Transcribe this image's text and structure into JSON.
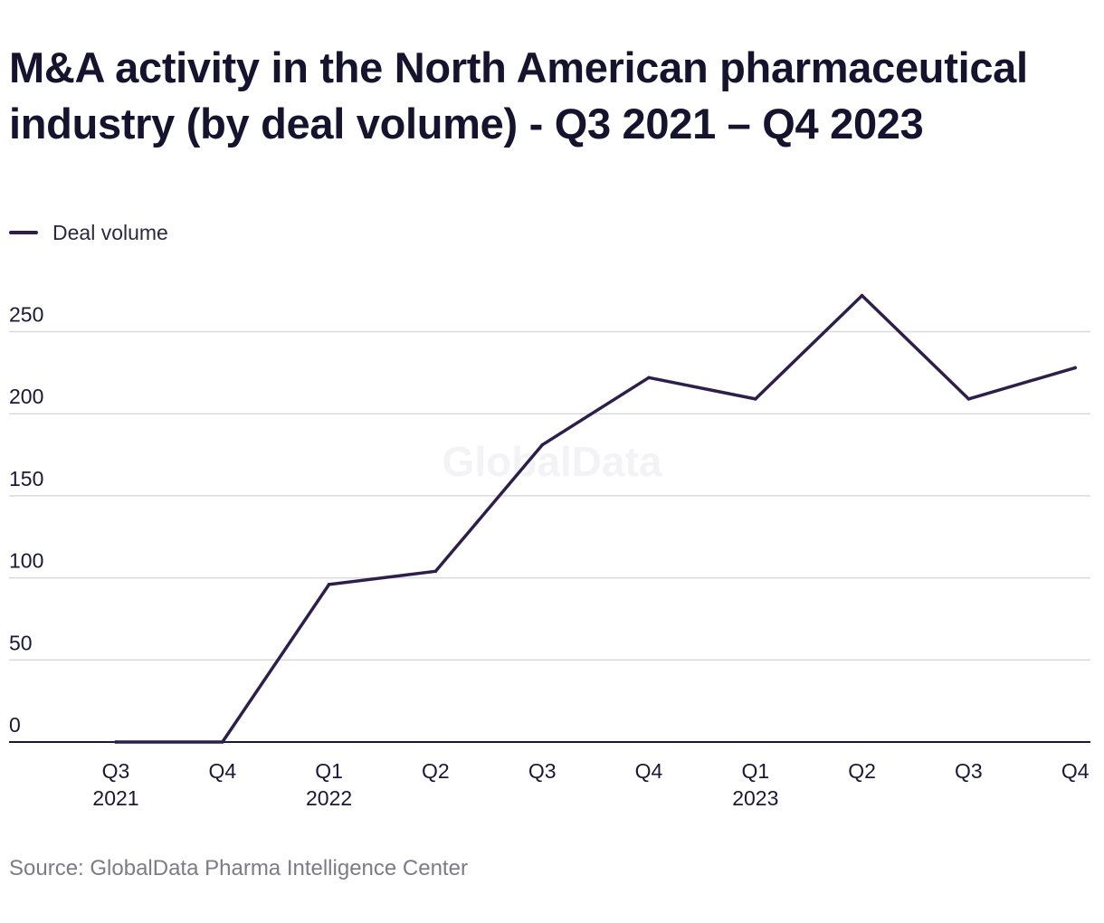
{
  "title": "M&A activity in the North American pharmaceutical industry (by deal volume) - Q3 2021 – Q4 2023",
  "legend": {
    "label": "Deal volume"
  },
  "source": "Source: GlobalData Pharma Intelligence Center",
  "watermark": "GlobalData",
  "colors": {
    "line": "#2e1f4a",
    "grid": "#d9d9de",
    "axis": "#1a1836",
    "watermark": "#f3f3f5"
  },
  "chart_data": {
    "type": "line",
    "categories": [
      "Q3 2021",
      "Q4 2021",
      "Q1 2022",
      "Q2 2022",
      "Q3 2022",
      "Q4 2022",
      "Q1 2023",
      "Q2 2023",
      "Q3 2023",
      "Q4 2023"
    ],
    "tick_labels": [
      {
        "quarter": "Q3",
        "year": "2021"
      },
      {
        "quarter": "Q4",
        "year": ""
      },
      {
        "quarter": "Q1",
        "year": "2022"
      },
      {
        "quarter": "Q2",
        "year": ""
      },
      {
        "quarter": "Q3",
        "year": ""
      },
      {
        "quarter": "Q4",
        "year": ""
      },
      {
        "quarter": "Q1",
        "year": "2023"
      },
      {
        "quarter": "Q2",
        "year": ""
      },
      {
        "quarter": "Q3",
        "year": ""
      },
      {
        "quarter": "Q4",
        "year": ""
      }
    ],
    "series": [
      {
        "name": "Deal volume",
        "values": [
          0,
          0,
          96,
          104,
          181,
          222,
          209,
          272,
          209,
          228
        ]
      }
    ],
    "yticks": [
      0,
      50,
      100,
      150,
      200,
      250
    ],
    "ylim": [
      0,
      275
    ],
    "grid": true,
    "legend_position": "top-left"
  }
}
